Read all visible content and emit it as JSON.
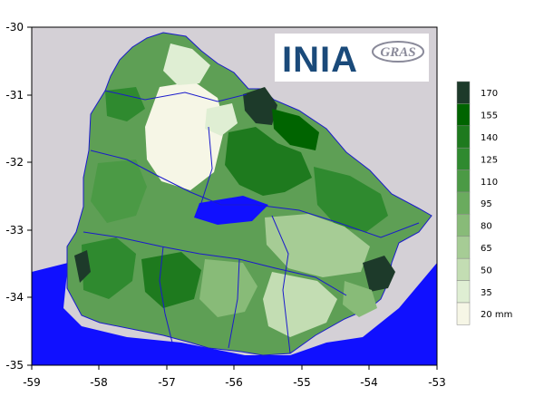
{
  "map": {
    "x_ticks": [
      "-59",
      "-58",
      "-57",
      "-56",
      "-55",
      "-54",
      "-53"
    ],
    "y_ticks": [
      "-30",
      "-31",
      "-32",
      "-33",
      "-34",
      "-35"
    ],
    "background_color": "#d4d0d6",
    "water_color": "#1010ff",
    "river_color": "#1a1acc"
  },
  "logos": {
    "inia": "INIA",
    "gras": "GRAS"
  },
  "legend": {
    "unit_label": "20 mm",
    "classes": [
      {
        "label": "170",
        "color": "#1d3a2a"
      },
      {
        "label": "155",
        "color": "#006400"
      },
      {
        "label": "140",
        "color": "#1e7a1e"
      },
      {
        "label": "125",
        "color": "#2f8a2f"
      },
      {
        "label": "110",
        "color": "#4b9a45"
      },
      {
        "label": "95",
        "color": "#6aab5e"
      },
      {
        "label": "80",
        "color": "#88bb78"
      },
      {
        "label": "65",
        "color": "#a6cc95"
      },
      {
        "label": "50",
        "color": "#c3ddb3"
      },
      {
        "label": "35",
        "color": "#dfeed3"
      },
      {
        "label": "",
        "color": "#f6f6e6"
      }
    ]
  }
}
